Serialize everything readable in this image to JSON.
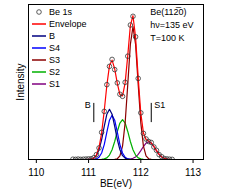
{
  "chart_data": {
    "type": "line",
    "xlabel": "BE(eV)",
    "ylabel": "Intensity",
    "xlim": [
      109.85,
      113.2
    ],
    "xticks": [
      110,
      111,
      112,
      113
    ],
    "ylim": [
      0,
      1.05
    ],
    "tick_labels": "x",
    "legend": "upper left",
    "x": [
      110.7,
      110.75,
      110.8,
      110.85,
      110.9,
      110.95,
      111,
      111.05,
      111.1,
      111.15,
      111.2,
      111.25,
      111.3,
      111.35,
      111.4,
      111.45,
      111.5,
      111.55,
      111.6,
      111.65,
      111.7,
      111.75,
      111.8,
      111.85,
      111.9,
      111.95,
      112,
      112.05,
      112.1,
      112.15,
      112.2,
      112.25,
      112.3,
      112.35,
      112.4,
      112.45,
      112.5,
      112.55,
      112.6
    ],
    "series": [
      {
        "name": "Be 1s",
        "type": "scatter",
        "marker": "circle",
        "color": "#333333",
        "values": [
          0.002,
          0.001,
          0.003,
          0.001,
          0.002,
          0.003,
          0.004,
          0.005,
          0.012,
          0.033,
          0.078,
          0.184,
          0.326,
          0.507,
          0.631,
          0.678,
          0.609,
          0.519,
          0.442,
          0.428,
          0.523,
          0.7,
          0.911,
          0.97,
          0.831,
          0.549,
          0.316,
          0.177,
          0.139,
          0.122,
          0.115,
          0.085,
          0.062,
          0.033,
          0.019,
          0.006,
          0.004,
          0.002,
          0.001
        ]
      },
      {
        "name": "Envelope",
        "type": "line",
        "color": "#ff0000",
        "values": [
          0,
          0,
          0,
          0,
          0,
          0,
          0.001,
          0.002,
          0.01,
          0.03,
          0.081,
          0.18,
          0.33,
          0.503,
          0.636,
          0.673,
          0.614,
          0.515,
          0.439,
          0.431,
          0.519,
          0.704,
          0.907,
          0.974,
          0.827,
          0.553,
          0.312,
          0.18,
          0.136,
          0.125,
          0.112,
          0.088,
          0.06,
          0.035,
          0.017,
          0.008,
          0.003,
          0.001,
          0
        ]
      },
      {
        "name": "B",
        "type": "line",
        "color": "#000080",
        "values": [
          0,
          0,
          0,
          0,
          0,
          0,
          0.001,
          0.002,
          0.009,
          0.026,
          0.066,
          0.135,
          0.225,
          0.307,
          0.34,
          0.307,
          0.225,
          0.135,
          0.066,
          0.026,
          0.009,
          0.002,
          0.001,
          0,
          0,
          0,
          0,
          0,
          0,
          0,
          0,
          0,
          0,
          0,
          0,
          0,
          0,
          0,
          0
        ]
      },
      {
        "name": "S4",
        "type": "line",
        "color": "#0000ff",
        "values": [
          0,
          0,
          0,
          0,
          0,
          0,
          0,
          0,
          0.001,
          0.004,
          0.015,
          0.044,
          0.101,
          0.185,
          0.266,
          0.3,
          0.266,
          0.185,
          0.101,
          0.044,
          0.015,
          0.004,
          0.001,
          0,
          0,
          0,
          0,
          0,
          0,
          0,
          0,
          0,
          0,
          0,
          0,
          0,
          0,
          0,
          0
        ]
      },
      {
        "name": "S3",
        "type": "line",
        "color": "#8b0000",
        "values": [
          0,
          0,
          0,
          0,
          0,
          0,
          0,
          0,
          0,
          0,
          0,
          0,
          0,
          0,
          0,
          0,
          0.001,
          0.005,
          0.025,
          0.091,
          0.248,
          0.507,
          0.78,
          0.9,
          0.78,
          0.507,
          0.248,
          0.091,
          0.025,
          0.005,
          0.001,
          0,
          0,
          0,
          0,
          0,
          0,
          0,
          0
        ]
      },
      {
        "name": "S2",
        "type": "line",
        "color": "#00b000",
        "values": [
          0,
          0,
          0,
          0,
          0,
          0,
          0,
          0,
          0,
          0,
          0,
          0.001,
          0.004,
          0.011,
          0.03,
          0.066,
          0.122,
          0.19,
          0.247,
          0.27,
          0.247,
          0.19,
          0.122,
          0.066,
          0.03,
          0.011,
          0.004,
          0.001,
          0,
          0,
          0,
          0,
          0,
          0,
          0,
          0,
          0,
          0,
          0
        ]
      },
      {
        "name": "S1",
        "type": "line",
        "color": "#800080",
        "values": [
          0,
          0,
          0,
          0,
          0,
          0,
          0,
          0,
          0,
          0,
          0,
          0,
          0,
          0,
          0,
          0,
          0,
          0,
          0,
          0,
          0,
          0.001,
          0.003,
          0.008,
          0.017,
          0.035,
          0.06,
          0.088,
          0.111,
          0.12,
          0.111,
          0.088,
          0.06,
          0.035,
          0.017,
          0.008,
          0.003,
          0.001,
          0
        ]
      }
    ],
    "annotations": [
      {
        "text": "Be(112̅0)",
        "x": 112.18,
        "y": 1.0
      },
      {
        "text": "hν=135 eV",
        "x": 112.18,
        "y": 0.91
      },
      {
        "text": "T=100 K",
        "x": 112.18,
        "y": 0.82
      },
      {
        "text": "B",
        "x": 111.1,
        "y": [
          0.25,
          0.38
        ]
      },
      {
        "text": "S1",
        "x": 112.2,
        "y": [
          0.25,
          0.38
        ]
      }
    ]
  }
}
